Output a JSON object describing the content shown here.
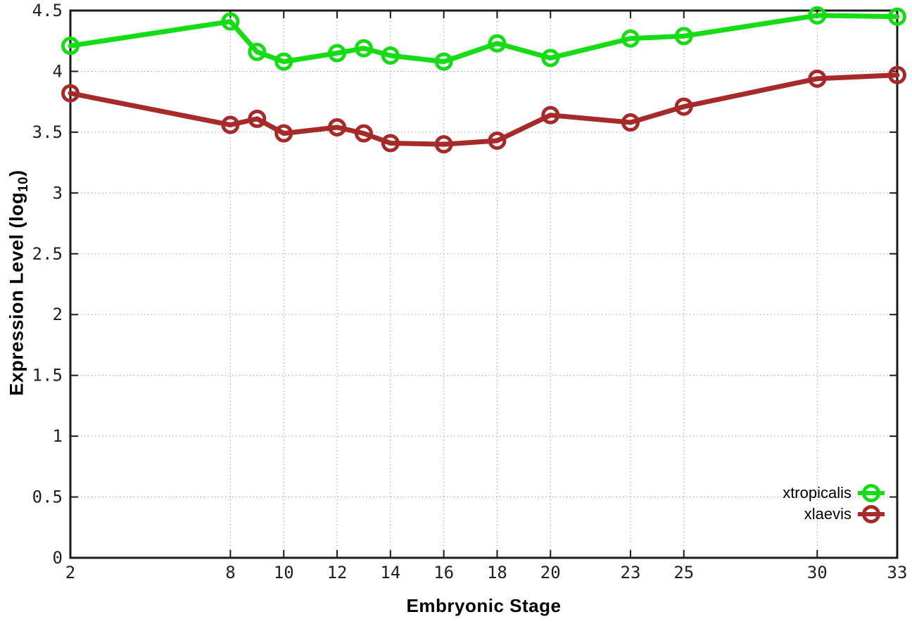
{
  "axes": {
    "xlabel": "Embryonic Stage",
    "ylabel_main": "Expression Level (log",
    "ylabel_sub": "10",
    "ylabel_close": ")"
  },
  "chart_data": {
    "type": "line",
    "title": "",
    "xlabel": "Embryonic Stage",
    "ylabel": "Expression Level (log10)",
    "xlim": [
      2,
      33
    ],
    "ylim": [
      0,
      4.5
    ],
    "grid": true,
    "legend_position": "bottom-right",
    "x": [
      2,
      8,
      9,
      10,
      12,
      13,
      14,
      16,
      18,
      20,
      23,
      25,
      30,
      33
    ],
    "xtick_values": [
      2,
      8,
      10,
      12,
      14,
      16,
      18,
      20,
      23,
      25,
      30,
      33
    ],
    "xtick_labels": [
      "2",
      "8",
      "10",
      "12",
      "14",
      "16",
      "18",
      "20",
      "23",
      "25",
      "30",
      "33"
    ],
    "ytick_values": [
      0,
      0.5,
      1,
      1.5,
      2,
      2.5,
      3,
      3.5,
      4,
      4.5
    ],
    "ytick_labels": [
      "0",
      "0.5",
      "1",
      "1.5",
      "2",
      "2.5",
      "3",
      "3.5",
      "4",
      "4.5"
    ],
    "series": [
      {
        "name": "xtropicalis",
        "color": "#16dc16",
        "values": [
          4.21,
          4.41,
          4.16,
          4.08,
          4.15,
          4.19,
          4.13,
          4.08,
          4.23,
          4.11,
          4.27,
          4.29,
          4.46,
          4.45
        ]
      },
      {
        "name": "xlaevis",
        "color": "#a62a2a",
        "values": [
          3.82,
          3.56,
          3.61,
          3.49,
          3.54,
          3.49,
          3.41,
          3.4,
          3.43,
          3.64,
          3.58,
          3.71,
          3.94,
          3.97
        ]
      }
    ],
    "colors": {
      "border": "#1a1a1a",
      "grid": "#a0a0a0",
      "tick_text": "#1f1f1f",
      "background": "#ffffff"
    }
  }
}
